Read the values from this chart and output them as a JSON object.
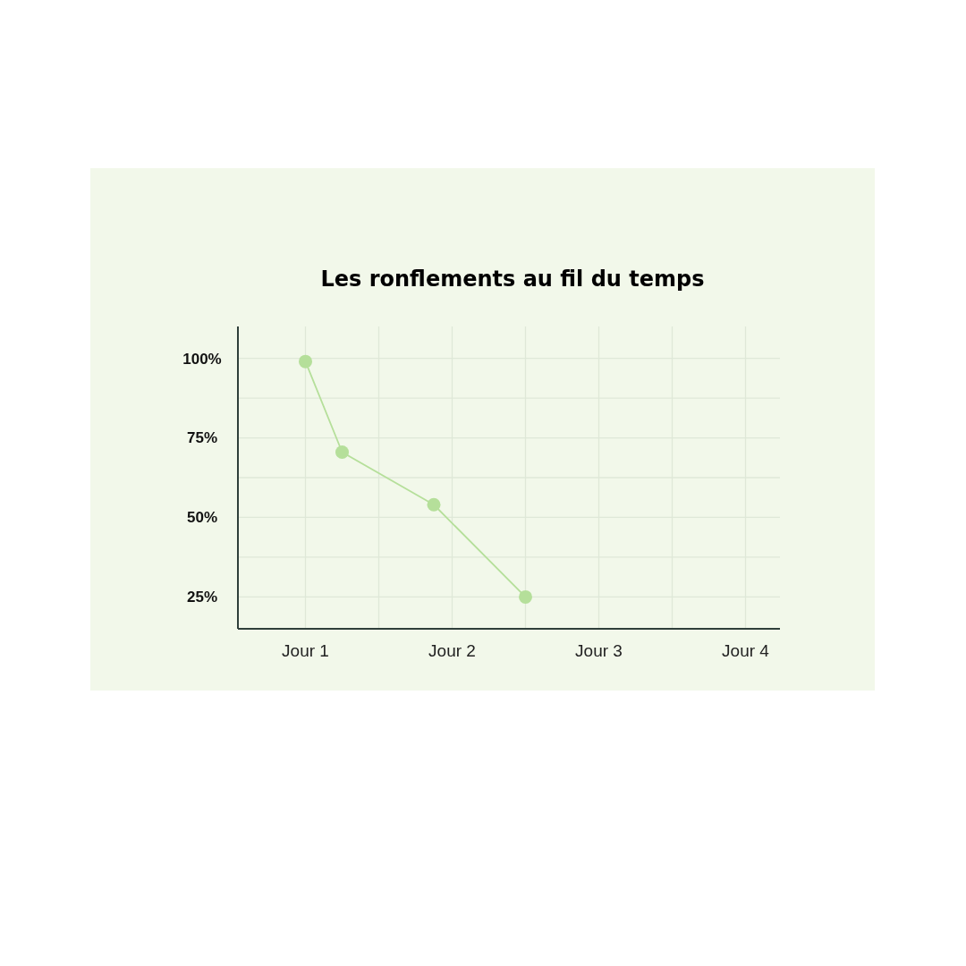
{
  "chart_data": {
    "type": "line",
    "title": "Les ronflements au fil du temps",
    "categories": [
      null,
      null,
      null,
      "Jour 1",
      null,
      null,
      null,
      null,
      null,
      null,
      null,
      "Jour 2",
      null,
      null,
      null,
      null,
      null,
      null,
      null,
      "Jour 3",
      null,
      null,
      null,
      null,
      null,
      null,
      null,
      "Jour 4",
      null
    ],
    "series": [
      {
        "color": "#b5df9a",
        "values": [
          null,
          null,
          null,
          99,
          null,
          70.5,
          null,
          null,
          null,
          null,
          54,
          null,
          null,
          null,
          null,
          25,
          null,
          null,
          null,
          null,
          null,
          null,
          null,
          null,
          null,
          null,
          null,
          null,
          null
        ]
      }
    ],
    "ylim": [
      15,
      110
    ],
    "yticks": [
      {
        "value": 25,
        "label": "25%"
      },
      {
        "value": 37.5,
        "label": null
      },
      {
        "value": 50,
        "label": "50%"
      },
      {
        "value": 62.5,
        "label": null
      },
      {
        "value": 75,
        "label": "75%"
      },
      {
        "value": 87.5,
        "label": null
      },
      {
        "value": 100,
        "label": "100%"
      }
    ],
    "grid": true,
    "marker": "circle",
    "line_style": "solid"
  }
}
